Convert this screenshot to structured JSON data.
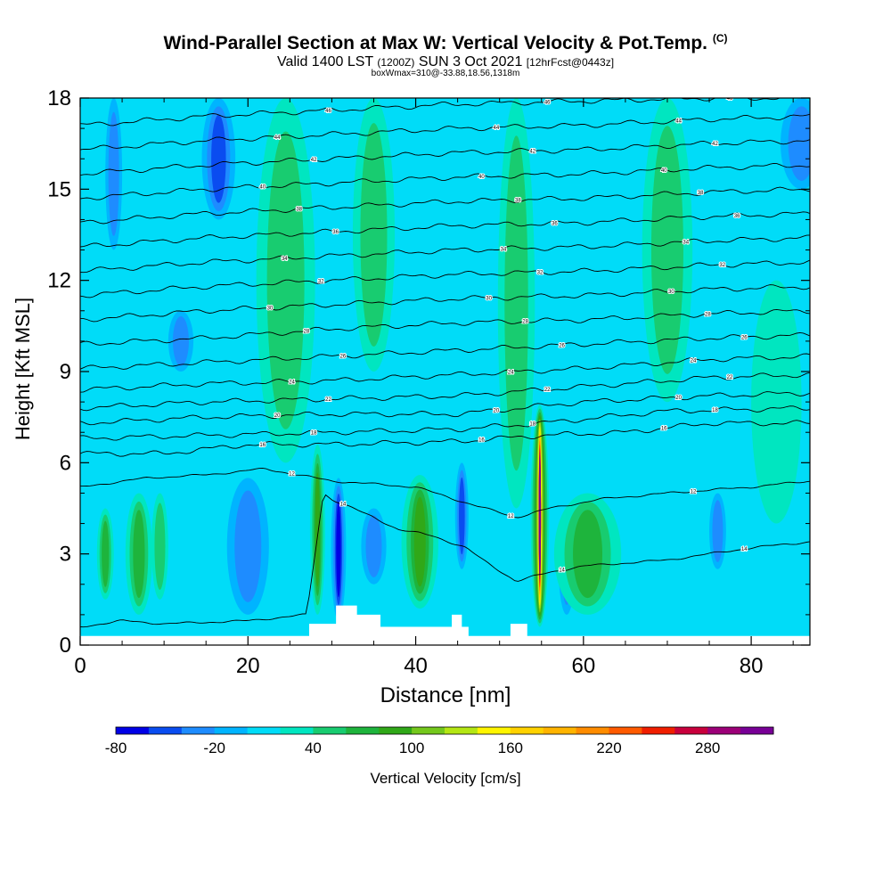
{
  "chart_data": {
    "type": "heatmap",
    "title": "Wind-Parallel Section at Max W: Vertical Velocity & Pot.Temp.",
    "title_mark": "(C)",
    "subtitle_main": "Valid 1400 LST",
    "subtitle_utc": "(1200Z)",
    "subtitle_date": "SUN 3 Oct 2021",
    "subtitle_fcst": "[12hrFcst@0443z]",
    "subsubtitle": "boxWmax=310@-33.88,18.56,1318m",
    "xlabel": "Distance [nm]",
    "ylabel": "Height [Kft MSL]",
    "xlim": [
      0,
      87
    ],
    "ylim": [
      0,
      18
    ],
    "x_ticks": [
      0,
      20,
      40,
      60,
      80
    ],
    "x_tick_labels": [
      "0",
      "20",
      "40",
      "60",
      "80"
    ],
    "y_ticks": [
      0,
      3,
      6,
      9,
      12,
      15,
      18
    ],
    "y_tick_labels": [
      "0",
      "3",
      "6",
      "9",
      "12",
      "15",
      "18"
    ],
    "colorbar": {
      "label": "Vertical Velocity [cm/s]",
      "min": -80,
      "max": 320,
      "step": 20,
      "tick_values": [
        -80,
        -20,
        40,
        100,
        160,
        220,
        280
      ],
      "tick_labels": [
        "-80",
        "-20",
        "40",
        "100",
        "160",
        "220",
        "280"
      ],
      "colors": [
        "#0000e6",
        "#0a4cf0",
        "#1e8cff",
        "#00b4ff",
        "#00dcf8",
        "#00e6c0",
        "#18cc70",
        "#1eb43c",
        "#30a818",
        "#74c81c",
        "#b4e614",
        "#fff500",
        "#ffd200",
        "#ffb400",
        "#ff8c00",
        "#ff5a00",
        "#f01e00",
        "#c8003c",
        "#9c0078",
        "#780096"
      ]
    },
    "background_value": 0,
    "updrafts": [
      {
        "x": 54.8,
        "z0": 0.6,
        "z1": 7.9,
        "peak": 310,
        "half_width_nm": 1.1
      },
      {
        "x": 28.3,
        "z0": 1.0,
        "z1": 6.6,
        "peak": 80,
        "half_width_nm": 0.9
      },
      {
        "x": 40.5,
        "z0": 1.2,
        "z1": 5.6,
        "peak": 70,
        "half_width_nm": 2.2
      },
      {
        "x": 60.5,
        "z0": 1.0,
        "z1": 5.0,
        "peak": 45,
        "half_width_nm": 4.0
      },
      {
        "x": 7.0,
        "z0": 1.0,
        "z1": 5.0,
        "peak": 55,
        "half_width_nm": 1.6
      },
      {
        "x": 3.0,
        "z0": 1.5,
        "z1": 4.5,
        "peak": 45,
        "half_width_nm": 1.0
      },
      {
        "x": 9.5,
        "z0": 1.5,
        "z1": 5.0,
        "peak": 35,
        "half_width_nm": 1.0
      },
      {
        "x": 24.5,
        "z0": 6.0,
        "z1": 18.0,
        "peak": 35,
        "half_width_nm": 3.5
      },
      {
        "x": 52.0,
        "z0": 4.5,
        "z1": 18.0,
        "peak": 35,
        "half_width_nm": 2.2
      },
      {
        "x": 35.0,
        "z0": 9.0,
        "z1": 18.0,
        "peak": 30,
        "half_width_nm": 2.5
      },
      {
        "x": 70.0,
        "z0": 8.0,
        "z1": 18.0,
        "peak": 30,
        "half_width_nm": 3.0
      },
      {
        "x": 83.0,
        "z0": 4.0,
        "z1": 12.0,
        "peak": 20,
        "half_width_nm": 3.0
      }
    ],
    "downdrafts": [
      {
        "x": 30.8,
        "z0": 0.8,
        "z1": 5.5,
        "peak": -80,
        "half_width_nm": 0.9
      },
      {
        "x": 20.0,
        "z0": 1.0,
        "z1": 5.5,
        "peak": -40,
        "half_width_nm": 2.5
      },
      {
        "x": 45.5,
        "z0": 2.5,
        "z1": 6.0,
        "peak": -55,
        "half_width_nm": 0.8
      },
      {
        "x": 16.5,
        "z0": 14.0,
        "z1": 18.0,
        "peak": -45,
        "half_width_nm": 2.0
      },
      {
        "x": 4.0,
        "z0": 13.0,
        "z1": 18.0,
        "peak": -35,
        "half_width_nm": 1.0
      },
      {
        "x": 86.0,
        "z0": 15.0,
        "z1": 18.0,
        "peak": -40,
        "half_width_nm": 2.5
      },
      {
        "x": 76.0,
        "z0": 2.5,
        "z1": 5.0,
        "peak": -35,
        "half_width_nm": 1.0
      },
      {
        "x": 35.0,
        "z0": 2.0,
        "z1": 4.5,
        "peak": -30,
        "half_width_nm": 1.5
      },
      {
        "x": 12.0,
        "z0": 9.0,
        "z1": 11.0,
        "peak": -25,
        "half_width_nm": 1.5
      },
      {
        "x": 58.0,
        "z0": 1.0,
        "z1": 4.5,
        "peak": -25,
        "half_width_nm": 1.0
      }
    ],
    "terrain_height_kft": [
      [
        0,
        0.3
      ],
      [
        27.3,
        0.3
      ],
      [
        27.3,
        0.7
      ],
      [
        30.5,
        0.7
      ],
      [
        30.5,
        1.3
      ],
      [
        33.0,
        1.3
      ],
      [
        33.0,
        1.0
      ],
      [
        35.8,
        1.0
      ],
      [
        35.8,
        0.6
      ],
      [
        44.3,
        0.6
      ],
      [
        44.3,
        1.0
      ],
      [
        45.5,
        1.0
      ],
      [
        45.5,
        0.6
      ],
      [
        46.3,
        0.6
      ],
      [
        46.3,
        0.3
      ],
      [
        51.3,
        0.3
      ],
      [
        51.3,
        0.7
      ],
      [
        53.3,
        0.7
      ],
      [
        53.3,
        0.3
      ],
      [
        87,
        0.3
      ]
    ],
    "isentropes": [
      {
        "label": "16",
        "knots": [
          [
            0,
            6.3
          ],
          [
            10,
            6.3
          ],
          [
            20,
            6.6
          ],
          [
            30,
            6.6
          ],
          [
            45,
            6.7
          ],
          [
            55,
            6.9
          ],
          [
            65,
            7.0
          ],
          [
            75,
            7.3
          ],
          [
            87,
            7.3
          ]
        ]
      },
      {
        "label": "18",
        "knots": [
          [
            0,
            6.8
          ],
          [
            15,
            6.9
          ],
          [
            30,
            7.0
          ],
          [
            45,
            7.1
          ],
          [
            55,
            7.3
          ],
          [
            70,
            7.7
          ],
          [
            87,
            7.8
          ]
        ]
      },
      {
        "label": "20",
        "knots": [
          [
            0,
            7.3
          ],
          [
            15,
            7.5
          ],
          [
            30,
            7.6
          ],
          [
            45,
            7.6
          ],
          [
            60,
            8.0
          ],
          [
            75,
            8.2
          ],
          [
            87,
            8.3
          ]
        ]
      },
      {
        "label": "22",
        "knots": [
          [
            0,
            7.8
          ],
          [
            15,
            8.0
          ],
          [
            30,
            8.1
          ],
          [
            45,
            8.2
          ],
          [
            60,
            8.5
          ],
          [
            75,
            8.8
          ],
          [
            87,
            8.9
          ]
        ]
      },
      {
        "label": "24",
        "knots": [
          [
            0,
            8.4
          ],
          [
            15,
            8.6
          ],
          [
            30,
            8.7
          ],
          [
            45,
            8.9
          ],
          [
            60,
            9.1
          ],
          [
            75,
            9.4
          ],
          [
            87,
            9.5
          ]
        ]
      },
      {
        "label": "26",
        "knots": [
          [
            0,
            9.1
          ],
          [
            15,
            9.3
          ],
          [
            30,
            9.5
          ],
          [
            45,
            9.7
          ],
          [
            60,
            9.9
          ],
          [
            75,
            10.1
          ],
          [
            87,
            10.2
          ]
        ]
      },
      {
        "label": "28",
        "knots": [
          [
            0,
            9.9
          ],
          [
            15,
            10.1
          ],
          [
            30,
            10.4
          ],
          [
            45,
            10.6
          ],
          [
            60,
            10.7
          ],
          [
            75,
            10.9
          ],
          [
            87,
            11.0
          ]
        ]
      },
      {
        "label": "30",
        "knots": [
          [
            0,
            10.7
          ],
          [
            15,
            11.0
          ],
          [
            30,
            11.2
          ],
          [
            45,
            11.4
          ],
          [
            60,
            11.5
          ],
          [
            75,
            11.7
          ],
          [
            87,
            11.8
          ]
        ]
      },
      {
        "label": "32",
        "knots": [
          [
            0,
            11.5
          ],
          [
            15,
            11.8
          ],
          [
            30,
            12.0
          ],
          [
            45,
            12.2
          ],
          [
            60,
            12.3
          ],
          [
            75,
            12.5
          ],
          [
            87,
            12.6
          ]
        ]
      },
      {
        "label": "34",
        "knots": [
          [
            0,
            12.3
          ],
          [
            15,
            12.6
          ],
          [
            30,
            12.8
          ],
          [
            45,
            13.0
          ],
          [
            60,
            13.1
          ],
          [
            75,
            13.3
          ],
          [
            87,
            13.4
          ]
        ]
      },
      {
        "label": "36",
        "knots": [
          [
            0,
            13.1
          ],
          [
            15,
            13.4
          ],
          [
            30,
            13.6
          ],
          [
            45,
            13.8
          ],
          [
            60,
            13.9
          ],
          [
            75,
            14.1
          ],
          [
            87,
            14.2
          ]
        ]
      },
      {
        "label": "38",
        "knots": [
          [
            0,
            13.9
          ],
          [
            15,
            14.2
          ],
          [
            30,
            14.4
          ],
          [
            45,
            14.6
          ],
          [
            60,
            14.7
          ],
          [
            75,
            14.9
          ],
          [
            87,
            15.0
          ]
        ]
      },
      {
        "label": "40",
        "knots": [
          [
            0,
            14.7
          ],
          [
            15,
            15.0
          ],
          [
            30,
            15.2
          ],
          [
            45,
            15.4
          ],
          [
            60,
            15.5
          ],
          [
            75,
            15.7
          ],
          [
            87,
            15.8
          ]
        ]
      },
      {
        "label": "42",
        "knots": [
          [
            0,
            15.5
          ],
          [
            15,
            15.8
          ],
          [
            30,
            16.0
          ],
          [
            45,
            16.2
          ],
          [
            60,
            16.3
          ],
          [
            75,
            16.5
          ],
          [
            87,
            16.6
          ]
        ]
      },
      {
        "label": "44",
        "knots": [
          [
            0,
            16.3
          ],
          [
            15,
            16.6
          ],
          [
            30,
            16.8
          ],
          [
            45,
            17.0
          ],
          [
            60,
            17.1
          ],
          [
            75,
            17.3
          ],
          [
            87,
            17.4
          ]
        ]
      },
      {
        "label": "46",
        "knots": [
          [
            0,
            17.1
          ],
          [
            15,
            17.4
          ],
          [
            30,
            17.6
          ],
          [
            45,
            17.8
          ],
          [
            60,
            17.9
          ],
          [
            75,
            18.0
          ],
          [
            87,
            18.0
          ]
        ]
      }
    ],
    "boundary_layer_contours": [
      {
        "label": "12",
        "knots": [
          [
            0,
            5.2
          ],
          [
            8,
            5.5
          ],
          [
            15,
            5.6
          ],
          [
            22,
            5.8
          ],
          [
            30,
            5.4
          ],
          [
            40,
            5.2
          ],
          [
            47,
            4.6
          ],
          [
            52,
            4.2
          ],
          [
            56,
            4.5
          ],
          [
            62,
            4.8
          ],
          [
            70,
            5.0
          ],
          [
            80,
            5.2
          ],
          [
            87,
            5.4
          ]
        ]
      },
      {
        "label": "14",
        "knots": [
          [
            0,
            0.6
          ],
          [
            5,
            0.8
          ],
          [
            10,
            0.7
          ],
          [
            20,
            0.8
          ],
          [
            27,
            1.0
          ],
          [
            28,
            3.0
          ],
          [
            29,
            5.0
          ],
          [
            30,
            4.8
          ],
          [
            35,
            4.2
          ],
          [
            38,
            3.8
          ],
          [
            42,
            3.6
          ],
          [
            46,
            3.2
          ],
          [
            48,
            2.8
          ],
          [
            52,
            2.1
          ],
          [
            56,
            2.4
          ],
          [
            60,
            2.6
          ],
          [
            70,
            2.8
          ],
          [
            80,
            3.2
          ],
          [
            87,
            3.4
          ]
        ]
      }
    ]
  }
}
